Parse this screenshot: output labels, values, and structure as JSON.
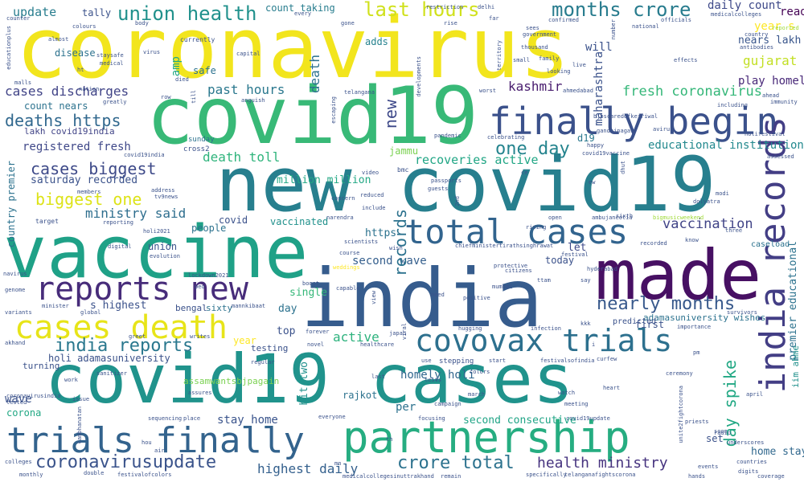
{
  "words": [
    {
      "text": "coronavirus",
      "color": "#f2e51d"
    },
    {
      "text": "covid19",
      "color": "#38b977"
    },
    {
      "text": "new covid19",
      "color": "#277f8e"
    },
    {
      "text": "finally begin",
      "color": "#3b518b"
    },
    {
      "text": "vaccine",
      "color": "#1fa187"
    },
    {
      "text": "made",
      "color": "#471063"
    },
    {
      "text": "india",
      "color": "#365c8d"
    },
    {
      "text": "total cases",
      "color": "#32648e"
    },
    {
      "text": "reports new",
      "color": "#472c7a"
    },
    {
      "text": "cases death",
      "color": "#e7e419"
    },
    {
      "text": "covovax trials",
      "color": "#2d708e"
    },
    {
      "text": "covid19 cases",
      "color": "#20938c"
    },
    {
      "text": "trials finally",
      "color": "#33638d"
    },
    {
      "text": "partnership",
      "color": "#26ad81"
    },
    {
      "text": "india records",
      "color": "#433e85"
    },
    {
      "text": "union health",
      "color": "#21918c"
    },
    {
      "text": "last hours",
      "color": "#d0e11c"
    },
    {
      "text": "months crore",
      "color": "#287c8e"
    },
    {
      "text": "daily count",
      "color": "#3e4989"
    },
    {
      "text": "update",
      "color": "#287d8e"
    },
    {
      "text": "deaths https",
      "color": "#31688e"
    },
    {
      "text": "cases discharges",
      "color": "#414487"
    },
    {
      "text": "registered fresh",
      "color": "#3f4889"
    },
    {
      "text": "cases biggest",
      "color": "#3e4a89"
    },
    {
      "text": "biggest one",
      "color": "#dde318"
    },
    {
      "text": "ministry said",
      "color": "#2e6e8e"
    },
    {
      "text": "one day",
      "color": "#25848e"
    },
    {
      "text": "past hours",
      "color": "#2a788e"
    },
    {
      "text": "death toll",
      "color": "#2fb47c"
    },
    {
      "text": "fresh coronavirus",
      "color": "#35b779"
    },
    {
      "text": "educational institutions",
      "color": "#23898e"
    },
    {
      "text": "vaccination",
      "color": "#414487"
    },
    {
      "text": "nearly months",
      "color": "#38598c"
    },
    {
      "text": "india reports",
      "color": "#2a788e"
    },
    {
      "text": "coronavirusupdate",
      "color": "#3a538b"
    },
    {
      "text": "crore total",
      "color": "#2c728e"
    },
    {
      "text": "health ministry",
      "color": "#46337f"
    },
    {
      "text": "highest daily",
      "color": "#34608d"
    },
    {
      "text": "second wave",
      "color": "#355f8d"
    },
    {
      "text": "active",
      "color": "#2db27d"
    },
    {
      "text": "recoveries active",
      "color": "#21a685"
    },
    {
      "text": "play homely",
      "color": "#482878"
    },
    {
      "text": "gujarat",
      "color": "#c2df23"
    },
    {
      "text": "kashmir",
      "color": "#481c6e"
    },
    {
      "text": "saturday recorded",
      "color": "#3b528b"
    },
    {
      "text": "homely holi",
      "color": "#31678e"
    },
    {
      "text": "second consecutive",
      "color": "#20a486"
    },
    {
      "text": "stay home",
      "color": "#3a548c"
    },
    {
      "text": "home stay",
      "color": "#31688e"
    },
    {
      "text": "read",
      "color": "#440154"
    },
    {
      "text": "year s",
      "color": "#fde725"
    },
    {
      "text": "nears lakh",
      "color": "#39568c"
    },
    {
      "text": "tally",
      "color": "#3b528b"
    },
    {
      "text": "count taking",
      "color": "#287d8e"
    },
    {
      "text": "disease",
      "color": "#2c728e"
    },
    {
      "text": "adds",
      "color": "#26828e"
    },
    {
      "text": "will",
      "color": "#3b528b"
    },
    {
      "text": "safe",
      "color": "#2c728e"
    },
    {
      "text": "d19",
      "color": "#2a788e"
    },
    {
      "text": "https",
      "color": "#2c728e"
    },
    {
      "text": "let",
      "color": "#3e4989"
    },
    {
      "text": "today",
      "color": "#3b528b"
    },
    {
      "text": "s highest",
      "color": "#3b528b"
    },
    {
      "text": "day",
      "color": "#2c728e"
    },
    {
      "text": "single",
      "color": "#35b779"
    },
    {
      "text": "top",
      "color": "#3b528b"
    },
    {
      "text": "wave",
      "color": "#3b528b"
    },
    {
      "text": "per",
      "color": "#2c728e"
    },
    {
      "text": "set",
      "color": "#3b528b"
    },
    {
      "text": "corona",
      "color": "#22a884"
    },
    {
      "text": "union",
      "color": "#3b528b"
    },
    {
      "text": "covid",
      "color": "#3b528b"
    },
    {
      "text": "vaccinated",
      "color": "#21918c"
    },
    {
      "text": "people",
      "color": "#2c728e"
    },
    {
      "text": "million million",
      "color": "#22a884"
    },
    {
      "text": "count nears",
      "color": "#2c728e"
    },
    {
      "text": "lakh covid19india",
      "color": "#414487"
    },
    {
      "text": "adamasuniversity wishes",
      "color": "#2c728e"
    },
    {
      "text": "holi adamasuniversity",
      "color": "#3b528b"
    },
    {
      "text": "first",
      "color": "#3b528b"
    },
    {
      "text": "testing",
      "color": "#3b528b"
    },
    {
      "text": "rajkot",
      "color": "#2c728e"
    },
    {
      "text": "assamwantsbjpagain",
      "color": "#7ad151"
    },
    {
      "text": "sixty",
      "color": "#2c728e"
    },
    {
      "text": "bengal",
      "color": "#3b528b"
    },
    {
      "text": "records",
      "color": "#2c728e"
    },
    {
      "text": "new",
      "color": "#3e4989"
    },
    {
      "text": "death",
      "color": "#2c728e"
    },
    {
      "text": "amp",
      "color": "#22a884"
    },
    {
      "text": "maharashtra",
      "color": "#3b528b"
    },
    {
      "text": "day spike",
      "color": "#22a884"
    },
    {
      "text": "hit two",
      "color": "#21918c"
    },
    {
      "text": "premier educational",
      "color": "#2c728e"
    },
    {
      "text": "country premier",
      "color": "#2c728e"
    },
    {
      "text": "jammu",
      "color": "#7ad151"
    },
    {
      "text": "iim ahme",
      "color": "#21918c"
    },
    {
      "text": "caseload",
      "color": "#2c728e"
    },
    {
      "text": "predicted",
      "color": "#3b528b"
    },
    {
      "text": "year",
      "color": "#fde725"
    },
    {
      "text": "cross2",
      "color": "#3b528b"
    },
    {
      "text": "sunday",
      "color": "#2c728e"
    },
    {
      "text": "medicalcolleges",
      "color": "#3b528b"
    },
    {
      "text": "government",
      "color": "#3b528b"
    },
    {
      "text": "confirmed",
      "color": "#3b528b"
    },
    {
      "text": "officials",
      "color": "#3b528b"
    },
    {
      "text": "country",
      "color": "#3b528b"
    },
    {
      "text": "antibodies",
      "color": "#3b528b"
    },
    {
      "text": "reported",
      "color": "#a0da39"
    },
    {
      "text": "immunity",
      "color": "#3b528b"
    },
    {
      "text": "ahmedabad",
      "color": "#3b528b"
    },
    {
      "text": "gandhinagar",
      "color": "#3b528b"
    },
    {
      "text": "telangana",
      "color": "#3b528b"
    },
    {
      "text": "worst",
      "color": "#3b528b"
    },
    {
      "text": "pandemic",
      "color": "#3b528b"
    },
    {
      "text": "celebrating",
      "color": "#3b528b"
    },
    {
      "text": "bmc",
      "color": "#3b528b"
    },
    {
      "text": "video",
      "color": "#3b528b"
    },
    {
      "text": "passports",
      "color": "#3b528b"
    },
    {
      "text": "guests",
      "color": "#3b528b"
    },
    {
      "text": "modi",
      "color": "#3b528b"
    },
    {
      "text": "dolyatra",
      "color": "#3b528b"
    },
    {
      "text": "avirus",
      "color": "#3b528b"
    },
    {
      "text": "including",
      "color": "#3b528b"
    },
    {
      "text": "assessed",
      "color": "#3b528b"
    },
    {
      "text": "ambujaneotia",
      "color": "#3b528b"
    },
    {
      "text": "bigmusicweekend",
      "color": "#a0da39"
    },
    {
      "text": "concern",
      "color": "#3b528b"
    },
    {
      "text": "reduced",
      "color": "#3b528b"
    },
    {
      "text": "include",
      "color": "#3b528b"
    },
    {
      "text": "narendra",
      "color": "#3b528b"
    },
    {
      "text": "tv9news",
      "color": "#3b528b"
    },
    {
      "text": "address",
      "color": "#3b528b"
    },
    {
      "text": "members",
      "color": "#3b528b"
    },
    {
      "text": "target",
      "color": "#3b528b"
    },
    {
      "text": "reporting",
      "color": "#3b528b"
    },
    {
      "text": "scientists",
      "color": "#3b528b"
    },
    {
      "text": "chiefministertirathsinghrawat",
      "color": "#3b528b"
    },
    {
      "text": "hyderabad",
      "color": "#3b528b"
    },
    {
      "text": "recorded",
      "color": "#3b528b"
    },
    {
      "text": "festival",
      "color": "#3b528b"
    },
    {
      "text": "know",
      "color": "#3b528b"
    },
    {
      "text": "three",
      "color": "#3b528b"
    },
    {
      "text": "open",
      "color": "#3b528b"
    },
    {
      "text": "rising",
      "color": "#3b528b"
    },
    {
      "text": "wish",
      "color": "#3b528b"
    },
    {
      "text": "digital",
      "color": "#3b528b"
    },
    {
      "text": "evolution",
      "color": "#3b528b"
    },
    {
      "text": "course",
      "color": "#3b528b"
    },
    {
      "text": "weddings",
      "color": "#fde725"
    },
    {
      "text": "protective",
      "color": "#3b528b"
    },
    {
      "text": "citizens",
      "color": "#3b528b"
    },
    {
      "text": "mumbai",
      "color": "#3b528b"
    },
    {
      "text": "say",
      "color": "#3b528b"
    },
    {
      "text": "genome",
      "color": "#3b528b"
    },
    {
      "text": "navirus",
      "color": "#3b528b"
    },
    {
      "text": "variants",
      "color": "#3b528b"
    },
    {
      "text": "minister",
      "color": "#3b528b"
    },
    {
      "text": "global",
      "color": "#3b528b"
    },
    {
      "text": "peo",
      "color": "#3b528b"
    },
    {
      "text": "lockdown2021",
      "color": "#3b528b"
    },
    {
      "text": "boost",
      "color": "#3b528b"
    },
    {
      "text": "capable",
      "color": "#3b528b"
    },
    {
      "text": "positive",
      "color": "#3b528b"
    },
    {
      "text": "need",
      "color": "#3b528b"
    },
    {
      "text": "mannkibaat",
      "color": "#3b528b"
    },
    {
      "text": "greet",
      "color": "#3b528b"
    },
    {
      "text": "writes",
      "color": "#3b528b"
    },
    {
      "text": "forever",
      "color": "#3b528b"
    },
    {
      "text": "japan",
      "color": "#3b528b"
    },
    {
      "text": "novel",
      "color": "#3b528b"
    },
    {
      "text": "healthcare",
      "color": "#3b528b"
    },
    {
      "text": "regular",
      "color": "#3b528b"
    },
    {
      "text": "infection",
      "color": "#3b528b"
    },
    {
      "text": "hugging",
      "color": "#3b528b"
    },
    {
      "text": "importance",
      "color": "#3b528b"
    },
    {
      "text": "survivors",
      "color": "#3b528b"
    },
    {
      "text": "akhand",
      "color": "#3b528b"
    },
    {
      "text": "turning",
      "color": "#3b528b"
    },
    {
      "text": "work",
      "color": "#3b528b"
    },
    {
      "text": "use",
      "color": "#3b528b"
    },
    {
      "text": "stepping",
      "color": "#3b528b"
    },
    {
      "text": "start",
      "color": "#3b528b"
    },
    {
      "text": "festivalsofindia",
      "color": "#3b528b"
    },
    {
      "text": "curfew",
      "color": "#3b528b"
    },
    {
      "text": "last",
      "color": "#3b528b"
    },
    {
      "text": "tests",
      "color": "#3b528b"
    },
    {
      "text": "march",
      "color": "#3b528b"
    },
    {
      "text": "watch",
      "color": "#3b528b"
    },
    {
      "text": "heart",
      "color": "#3b528b"
    },
    {
      "text": "april",
      "color": "#3b528b"
    },
    {
      "text": "coronavirusindia",
      "color": "#3b528b"
    },
    {
      "text": "issue",
      "color": "#3b528b"
    },
    {
      "text": "tested",
      "color": "#3b528b"
    },
    {
      "text": "sequencing",
      "color": "#3b528b"
    },
    {
      "text": "place",
      "color": "#3b528b"
    },
    {
      "text": "everyone",
      "color": "#3b528b"
    },
    {
      "text": "focusing",
      "color": "#3b528b"
    },
    {
      "text": "covid19update",
      "color": "#3b528b"
    },
    {
      "text": "unite2fightcorona",
      "color": "#3b528b"
    },
    {
      "text": "priests",
      "color": "#3b528b"
    },
    {
      "text": "radio",
      "color": "#3b528b"
    },
    {
      "text": "underscores",
      "color": "#3b528b"
    },
    {
      "text": "colleges",
      "color": "#3b528b"
    },
    {
      "text": "monthly",
      "color": "#3b528b"
    },
    {
      "text": "double",
      "color": "#3b528b"
    },
    {
      "text": "festivalofcolors",
      "color": "#3b528b"
    },
    {
      "text": "medicalcollegesinuttrakhand",
      "color": "#3b528b"
    },
    {
      "text": "telanganafightscorona",
      "color": "#3b528b"
    },
    {
      "text": "events",
      "color": "#3b528b"
    },
    {
      "text": "digits",
      "color": "#3b528b"
    },
    {
      "text": "countries",
      "color": "#3b528b"
    },
    {
      "text": "coverage",
      "color": "#3b528b"
    },
    {
      "text": "hands",
      "color": "#3b528b"
    },
    {
      "text": "air",
      "color": "#3b528b"
    },
    {
      "text": "hou",
      "color": "#3b528b"
    },
    {
      "text": "mn",
      "color": "#3b528b"
    },
    {
      "text": "remain",
      "color": "#3b528b"
    },
    {
      "text": "counter",
      "color": "#3b528b"
    },
    {
      "text": "every",
      "color": "#3b528b"
    },
    {
      "text": "rise",
      "color": "#3b528b"
    },
    {
      "text": "gone",
      "color": "#3b528b"
    },
    {
      "text": "restriction",
      "color": "#3b528b"
    },
    {
      "text": "delhi",
      "color": "#3b528b"
    },
    {
      "text": "far",
      "color": "#3b528b"
    },
    {
      "text": "body",
      "color": "#3b528b"
    },
    {
      "text": "colours",
      "color": "#3b528b"
    },
    {
      "text": "almost",
      "color": "#3b528b"
    },
    {
      "text": "currently",
      "color": "#3b528b"
    },
    {
      "text": "capital",
      "color": "#3b528b"
    },
    {
      "text": "staysafe",
      "color": "#3b528b"
    },
    {
      "text": "virus",
      "color": "#3b528b"
    },
    {
      "text": "medical",
      "color": "#3b528b"
    },
    {
      "text": "ht",
      "color": "#3b528b"
    },
    {
      "text": "died",
      "color": "#3b528b"
    },
    {
      "text": "thousand",
      "color": "#3b528b"
    },
    {
      "text": "looking",
      "color": "#3b528b"
    },
    {
      "text": "family",
      "color": "#3b528b"
    },
    {
      "text": "live",
      "color": "#3b528b"
    },
    {
      "text": "small",
      "color": "#3b528b"
    },
    {
      "text": "territory",
      "color": "#3b528b"
    },
    {
      "text": "sees",
      "color": "#3b528b"
    },
    {
      "text": "national",
      "color": "#3b528b"
    },
    {
      "text": "number",
      "color": "#3b528b"
    },
    {
      "text": "ahead",
      "color": "#3b528b"
    },
    {
      "text": "effects",
      "color": "#3b528b"
    },
    {
      "text": "malls",
      "color": "#3b528b"
    },
    {
      "text": "nation",
      "color": "#3b528b"
    },
    {
      "text": "greatly",
      "color": "#3b528b"
    },
    {
      "text": "row",
      "color": "#3b528b"
    },
    {
      "text": "till",
      "color": "#3b528b"
    },
    {
      "text": "anguish",
      "color": "#3b528b"
    },
    {
      "text": "escaping",
      "color": "#3b528b"
    },
    {
      "text": "developments",
      "color": "#3b528b"
    },
    {
      "text": "educationplus",
      "color": "#3b528b"
    },
    {
      "text": "holi2021",
      "color": "#3b528b"
    },
    {
      "text": "2nd",
      "color": "#3b528b"
    },
    {
      "text": "bjpscaredofkejriwal",
      "color": "#3b528b"
    },
    {
      "text": "covid19vaccine",
      "color": "#3b528b"
    },
    {
      "text": "happy",
      "color": "#3b528b"
    },
    {
      "text": "holifestival",
      "color": "#3b528b"
    },
    {
      "text": "covid19india",
      "color": "#3b528b"
    },
    {
      "text": "ew",
      "color": "#3b528b"
    },
    {
      "text": "ce",
      "color": "#3b528b"
    },
    {
      "text": "th",
      "color": "#3b528b"
    },
    {
      "text": "dhut",
      "color": "#3b528b"
    },
    {
      "text": "view",
      "color": "#3b528b"
    },
    {
      "text": "viral",
      "color": "#3b528b"
    },
    {
      "text": "sanitizer",
      "color": "#3b528b"
    },
    {
      "text": "meeting",
      "color": "#3b528b"
    },
    {
      "text": "ceremony",
      "color": "#3b528b"
    },
    {
      "text": "campaign",
      "color": "#3b528b"
    },
    {
      "text": "cambhanatan",
      "color": "#3b528b"
    },
    {
      "text": "specifically",
      "color": "#3b528b"
    },
    {
      "text": "assures",
      "color": "#3b528b"
    },
    {
      "text": "pm",
      "color": "#3b528b"
    },
    {
      "text": "soon",
      "color": "#3b528b"
    },
    {
      "text": "colors",
      "color": "#3b528b"
    },
    {
      "text": "sixth",
      "color": "#3b528b"
    },
    {
      "text": "ttam",
      "color": "#3b528b"
    },
    {
      "text": "i",
      "color": "#3b528b"
    },
    {
      "text": "kkk",
      "color": "#3b528b"
    },
    {
      "text": "iii",
      "color": "#3b528b"
    }
  ]
}
